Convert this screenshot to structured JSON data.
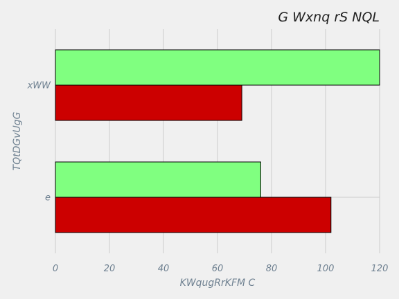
{
  "chart_data": {
    "type": "bar",
    "orientation": "horizontal",
    "title": "G Wxnq rS  NQL",
    "xlabel": "KWqugRrKFM C",
    "ylabel": "TQtDGvUgG",
    "categories": [
      "e",
      "xWW"
    ],
    "series": [
      {
        "color": "#cc0000",
        "values": [
          102,
          69
        ]
      },
      {
        "color": "#80ff80",
        "values": [
          76,
          120
        ]
      }
    ],
    "xlim": [
      0,
      120
    ],
    "xticks": [
      0,
      20,
      40,
      60,
      80,
      100,
      120
    ],
    "grid": true,
    "legend": false
  }
}
